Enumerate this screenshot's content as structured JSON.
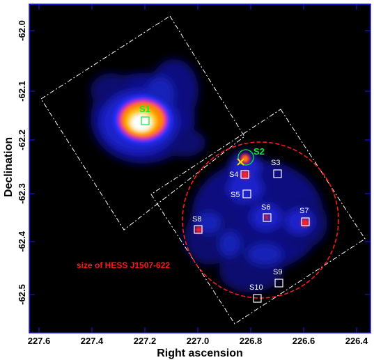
{
  "figure": {
    "x_axis_label": "Right ascension",
    "y_axis_label": "Declination",
    "x_ticks": [
      "227.6",
      "227.4",
      "227.2",
      "227.0",
      "226.8",
      "226.6",
      "226.4"
    ],
    "y_ticks": [
      "-62.0",
      "-62.1",
      "-62.2",
      "-62.3",
      "-62.4",
      "-62.5"
    ],
    "hess_label": "size of HESS J1507-622",
    "sources": [
      {
        "id": "S1",
        "label": "S1",
        "color": "#00ee33"
      },
      {
        "id": "S2",
        "label": "S2",
        "color": "#00ee33"
      },
      {
        "id": "S3",
        "label": "S3",
        "color": "#ffffff"
      },
      {
        "id": "S4",
        "label": "S4",
        "color": "#ffffff"
      },
      {
        "id": "S5",
        "label": "S5",
        "color": "#ffffff"
      },
      {
        "id": "S6",
        "label": "S6",
        "color": "#ffffff"
      },
      {
        "id": "S7",
        "label": "S7",
        "color": "#ffffff"
      },
      {
        "id": "S8",
        "label": "S8",
        "color": "#ffffff"
      },
      {
        "id": "S9",
        "label": "S9",
        "color": "#ffffff"
      },
      {
        "id": "S10",
        "label": "S10",
        "color": "#ffffff"
      }
    ],
    "colors": {
      "background": "#000000",
      "frame": "#1a1aff",
      "fov_outline": "#ffffff",
      "hess_circle": "#ff1a1a",
      "marker_green": "#00ee33",
      "marker_white": "#ffffff",
      "cross": "#ffd700"
    },
    "colormap": [
      "#000000",
      "#0a0a80",
      "#1a2aff",
      "#ff1a1a",
      "#ffb000",
      "#ffffff"
    ]
  }
}
